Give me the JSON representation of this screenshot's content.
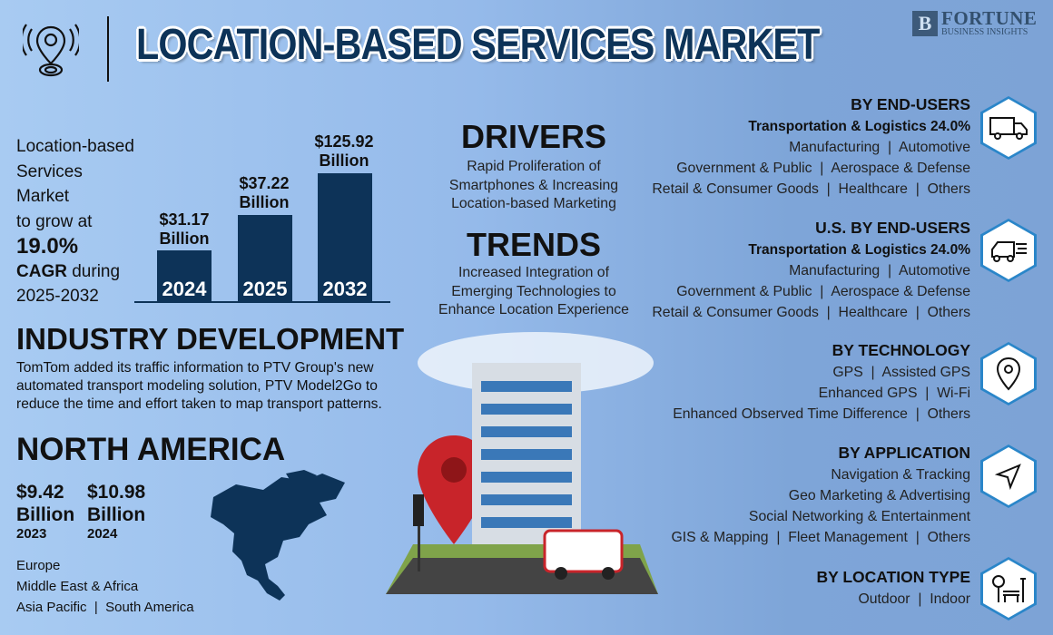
{
  "header": {
    "title": "LOCATION-BASED SERVICES MARKET",
    "logo_line1": "FORTUNE",
    "logo_line2": "BUSINESS INSIGHTS",
    "icon": "location-pin-signal-icon"
  },
  "market": {
    "line1": "Location-based",
    "line2": "Services",
    "line3": "Market",
    "line4": "to grow at",
    "cagr": "19.0%",
    "cagr_label": "CAGR",
    "during": " during",
    "period": "2025-2032",
    "bars": [
      {
        "year": "2024",
        "value": "$31.17",
        "unit": "Billion"
      },
      {
        "year": "2025",
        "value": "$37.22",
        "unit": "Billion"
      },
      {
        "year": "2032",
        "value": "$125.92",
        "unit": "Billion"
      }
    ]
  },
  "industry": {
    "heading": "INDUSTRY DEVELOPMENT",
    "text": "TomTom added its traffic information to PTV Group's new automated transport modeling solution, PTV Model2Go to reduce the time and effort taken to map transport patterns."
  },
  "north_america": {
    "heading": "NORTH AMERICA",
    "values": [
      {
        "value": "$9.42",
        "unit": "Billion",
        "year": "2023"
      },
      {
        "value": "$10.98",
        "unit": "Billion",
        "year": "2024"
      }
    ],
    "regions": [
      "Europe",
      "Middle East & Africa",
      "Asia Pacific  |  South America"
    ]
  },
  "drivers": {
    "heading": "DRIVERS",
    "text": "Rapid Proliferation of Smartphones & Increasing Location-based Marketing"
  },
  "trends": {
    "heading": "TRENDS",
    "text": "Increased Integration of Emerging Technologies to Enhance Location Experience"
  },
  "segments": [
    {
      "heading": "BY END-USERS",
      "bold": "Transportation & Logistics 24.0%",
      "lines": [
        "Manufacturing  |  Automotive",
        "Government & Public  |  Aerospace & Defense",
        "Retail & Consumer Goods  |  Healthcare  |  Others"
      ],
      "icon": "truck-icon"
    },
    {
      "heading": "U.S. BY END-USERS",
      "bold": "Transportation & Logistics 24.0%",
      "lines": [
        "Manufacturing  |  Automotive",
        "Government & Public  |  Aerospace & Defense",
        "Retail & Consumer Goods  |  Healthcare  |  Others"
      ],
      "icon": "fast-truck-icon"
    },
    {
      "heading": "BY TECHNOLOGY",
      "lines": [
        "GPS  |  Assisted GPS",
        "Enhanced GPS  |  Wi-Fi",
        "Enhanced Observed Time Difference  |  Others"
      ],
      "icon": "map-pin-icon"
    },
    {
      "heading": "BY APPLICATION",
      "lines": [
        "Navigation & Tracking",
        "Geo Marketing & Advertising",
        "Social Networking & Entertainment",
        "GIS & Mapping  |  Fleet Management  |  Others"
      ],
      "icon": "navigation-arrow-icon"
    },
    {
      "heading": "BY LOCATION TYPE",
      "lines": [
        "Outdoor  |  Indoor"
      ],
      "icon": "park-bench-icon"
    }
  ],
  "colors": {
    "navy": "#0d3358",
    "hex_border": "#2a86c9",
    "pin_red": "#c8242a"
  }
}
